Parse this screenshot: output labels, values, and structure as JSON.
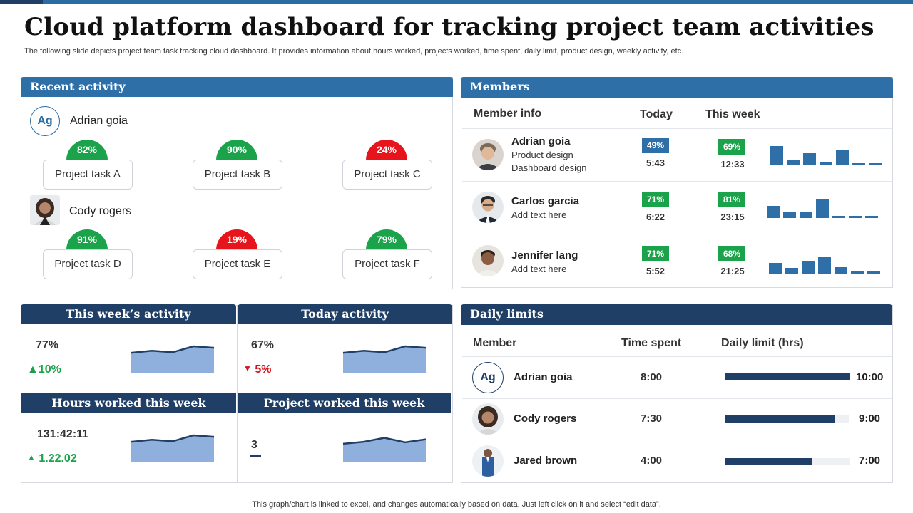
{
  "header": {
    "title": "Cloud platform dashboard for tracking project team activities",
    "subtitle": "The following slide depicts project team task tracking cloud dashboard. It provides information about hours worked, projects worked, time spent, daily limit, product design, weekly activity,  etc."
  },
  "footer_note": "This graph/chart is linked to excel,  and changes automatically based on data. Just left click on it and select “edit data”.",
  "colors": {
    "brand_blue": "#2e6fa8",
    "navy": "#1f3f66",
    "green": "#1aa34a",
    "red": "#e8141b",
    "spark_fill": "#8fb0dd"
  },
  "recent_activity": {
    "title": "Recent activity",
    "people": [
      {
        "initials": "Ag",
        "name": "Adrian goia",
        "tasks": [
          {
            "label": "Project task A",
            "pct": "82%",
            "status": "green"
          },
          {
            "label": "Project task B",
            "pct": "90%",
            "status": "green"
          },
          {
            "label": "Project task C",
            "pct": "24%",
            "status": "red"
          }
        ]
      },
      {
        "name": "Cody rogers",
        "tasks": [
          {
            "label": "Project task D",
            "pct": "91%",
            "status": "green"
          },
          {
            "label": "Project task E",
            "pct": "19%",
            "status": "red"
          },
          {
            "label": "Project task F",
            "pct": "79%",
            "status": "green"
          }
        ]
      }
    ]
  },
  "members": {
    "title": "Members",
    "columns": {
      "info": "Member info",
      "today": "Today",
      "week": "This week"
    },
    "rows": [
      {
        "name": "Adrian goia",
        "sub1": "Product design",
        "sub2": "Dashboard design",
        "today_pct": "49%",
        "today_time": "5:43",
        "today_color": "blue",
        "week_pct": "69%",
        "week_time": "12:33",
        "bars": [
          0.9,
          0.25,
          0.55,
          0.15,
          0.7,
          0.08,
          0.08
        ]
      },
      {
        "name": "Carlos garcia",
        "sub1": "Add text here",
        "sub2": "",
        "today_pct": "71%",
        "today_time": "6:22",
        "today_color": "green",
        "week_pct": "81%",
        "week_time": "23:15",
        "bars": [
          0.55,
          0.25,
          0.25,
          0.9,
          0.05,
          0.05,
          0.05
        ]
      },
      {
        "name": "Jennifer lang",
        "sub1": "Add text here",
        "sub2": "",
        "today_pct": "71%",
        "today_time": "5:52",
        "today_color": "green",
        "week_pct": "68%",
        "week_time": "21:25",
        "bars": [
          0.5,
          0.25,
          0.6,
          0.8,
          0.3,
          0.1,
          0.1
        ]
      }
    ]
  },
  "weekly_activity": {
    "title": "This week’s activity",
    "value": "77%",
    "delta": "10%",
    "delta_direction": "up",
    "spark": [
      0.35,
      0.55,
      0.4,
      1.0,
      0.85
    ]
  },
  "today_activity": {
    "title": "Today activity",
    "value": "67%",
    "delta": "5%",
    "delta_direction": "down",
    "spark": [
      0.35,
      0.55,
      0.4,
      1.0,
      0.85
    ]
  },
  "hours_worked": {
    "title": "Hours worked this week",
    "value": "131:42:11",
    "delta": "1.22.02",
    "delta_direction": "up",
    "spark": [
      0.35,
      0.55,
      0.4,
      1.0,
      0.85
    ]
  },
  "projects_worked": {
    "title": "Project worked this week",
    "value": "3",
    "spark": [
      0.15,
      0.35,
      0.75,
      0.3,
      0.6
    ]
  },
  "daily_limits": {
    "title": "Daily limits",
    "columns": {
      "member": "Member",
      "time_spent": "Time spent",
      "limit": "Daily limit (hrs)"
    },
    "rows": [
      {
        "initials": "Ag",
        "name": "Adrian goia",
        "time_spent": "8:00",
        "limit": "10:00",
        "fill": 1.0
      },
      {
        "name": "Cody rogers",
        "time_spent": "7:30",
        "limit": "9:00",
        "fill": 0.89
      },
      {
        "name": "Jared brown",
        "time_spent": "4:00",
        "limit": "7:00",
        "fill": 0.7
      }
    ]
  }
}
